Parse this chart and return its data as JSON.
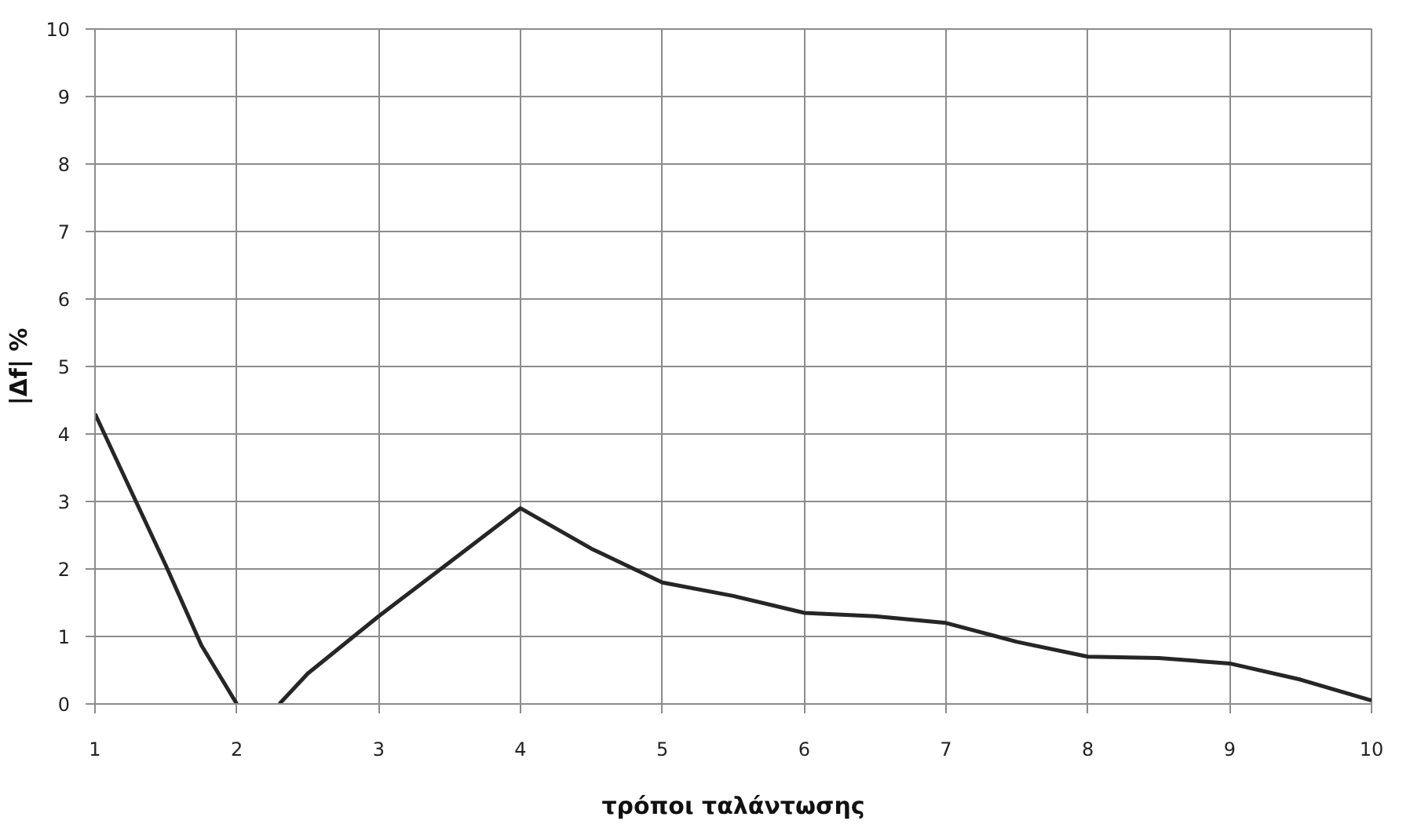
{
  "chart_data": {
    "type": "line",
    "xlabel": "τρόποι ταλάντωσης",
    "ylabel": "|Δf| %",
    "x": [
      1,
      1.5,
      1.75,
      2,
      2.15,
      2.3,
      2.5,
      3,
      3.5,
      4,
      4.5,
      5,
      5.5,
      6,
      6.5,
      7,
      7.5,
      8,
      8.5,
      9,
      9.5,
      10
    ],
    "series": [
      {
        "color": "#262626",
        "values": [
          4.3,
          2.05,
          0.87,
          0,
          null,
          0,
          0.45,
          1.3,
          2.1,
          2.9,
          2.3,
          1.8,
          1.6,
          1.35,
          1.3,
          1.2,
          0.92,
          0.7,
          0.68,
          0.6,
          0.36,
          0.05
        ]
      }
    ],
    "xlim": [
      1,
      10
    ],
    "xticks": [
      1,
      2,
      3,
      4,
      5,
      6,
      7,
      8,
      9,
      10
    ],
    "ylim": [
      0,
      10
    ],
    "yticks": [
      0,
      1,
      2,
      3,
      4,
      5,
      6,
      7,
      8,
      9,
      10
    ],
    "grid": true,
    "marker": "none",
    "line_style": "solid"
  }
}
